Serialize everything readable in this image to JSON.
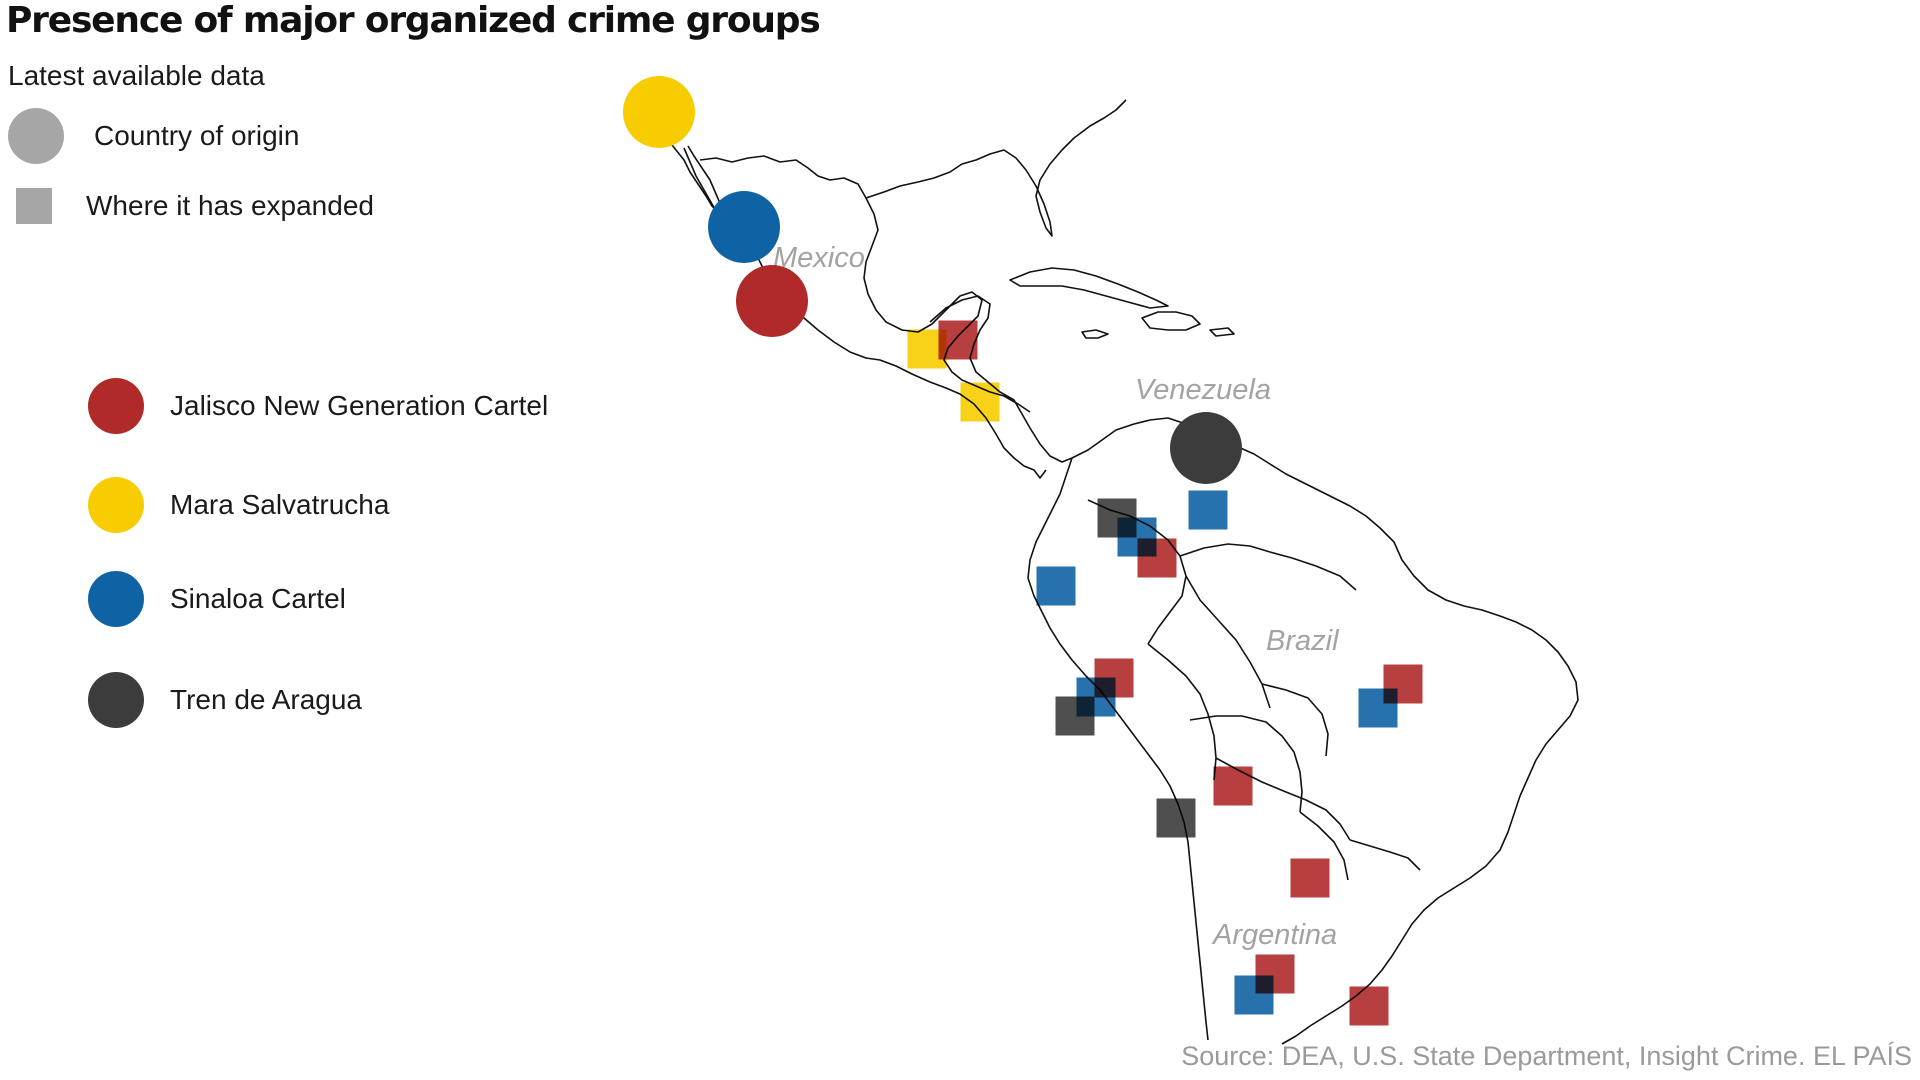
{
  "title": "Presence of major organized crime groups",
  "subtitle": "Latest available data",
  "legend_symbols": {
    "origin_label": "Country of origin",
    "expanded_label": "Where it has expanded",
    "symbol_color": "#a6a6a6"
  },
  "groups": [
    {
      "name": "Jalisco New Generation Cartel",
      "color": "#b02a2a"
    },
    {
      "name": "Mara Salvatrucha",
      "color": "#f7cc00"
    },
    {
      "name": "Sinaloa Cartel",
      "color": "#0f63a4"
    },
    {
      "name": "Tren de Aragua",
      "color": "#3c3c3c"
    }
  ],
  "country_labels": {
    "mexico": "Mexico",
    "venezuela": "Venezuela",
    "brazil": "Brazil",
    "argentina": "Argentina"
  },
  "origins": [
    {
      "group": "Mara Salvatrucha",
      "location": "United States (Los Angeles)"
    },
    {
      "group": "Sinaloa Cartel",
      "location": "Sinaloa, Mexico"
    },
    {
      "group": "Jalisco New Generation Cartel",
      "location": "Jalisco, Mexico"
    },
    {
      "group": "Tren de Aragua",
      "location": "Venezuela"
    }
  ],
  "expansions": [
    {
      "group": "Mara Salvatrucha",
      "location": "Guatemala"
    },
    {
      "group": "Jalisco New Generation Cartel",
      "location": "Guatemala"
    },
    {
      "group": "Mara Salvatrucha",
      "location": "Honduras"
    },
    {
      "group": "Sinaloa Cartel",
      "location": "Venezuela"
    },
    {
      "group": "Tren de Aragua",
      "location": "Colombia"
    },
    {
      "group": "Sinaloa Cartel",
      "location": "Colombia"
    },
    {
      "group": "Jalisco New Generation Cartel",
      "location": "Colombia"
    },
    {
      "group": "Sinaloa Cartel",
      "location": "Ecuador"
    },
    {
      "group": "Jalisco New Generation Cartel",
      "location": "Peru"
    },
    {
      "group": "Sinaloa Cartel",
      "location": "Peru"
    },
    {
      "group": "Tren de Aragua",
      "location": "Peru"
    },
    {
      "group": "Jalisco New Generation Cartel",
      "location": "Brazil"
    },
    {
      "group": "Sinaloa Cartel",
      "location": "Brazil"
    },
    {
      "group": "Jalisco New Generation Cartel",
      "location": "Bolivia"
    },
    {
      "group": "Tren de Aragua",
      "location": "Chile"
    },
    {
      "group": "Jalisco New Generation Cartel",
      "location": "Paraguay"
    },
    {
      "group": "Jalisco New Generation Cartel",
      "location": "Argentina"
    },
    {
      "group": "Sinaloa Cartel",
      "location": "Argentina"
    },
    {
      "group": "Jalisco New Generation Cartel",
      "location": "Uruguay"
    }
  ],
  "source": "Source: DEA, U.S. State Department, Insight Crime. EL PAÍS"
}
